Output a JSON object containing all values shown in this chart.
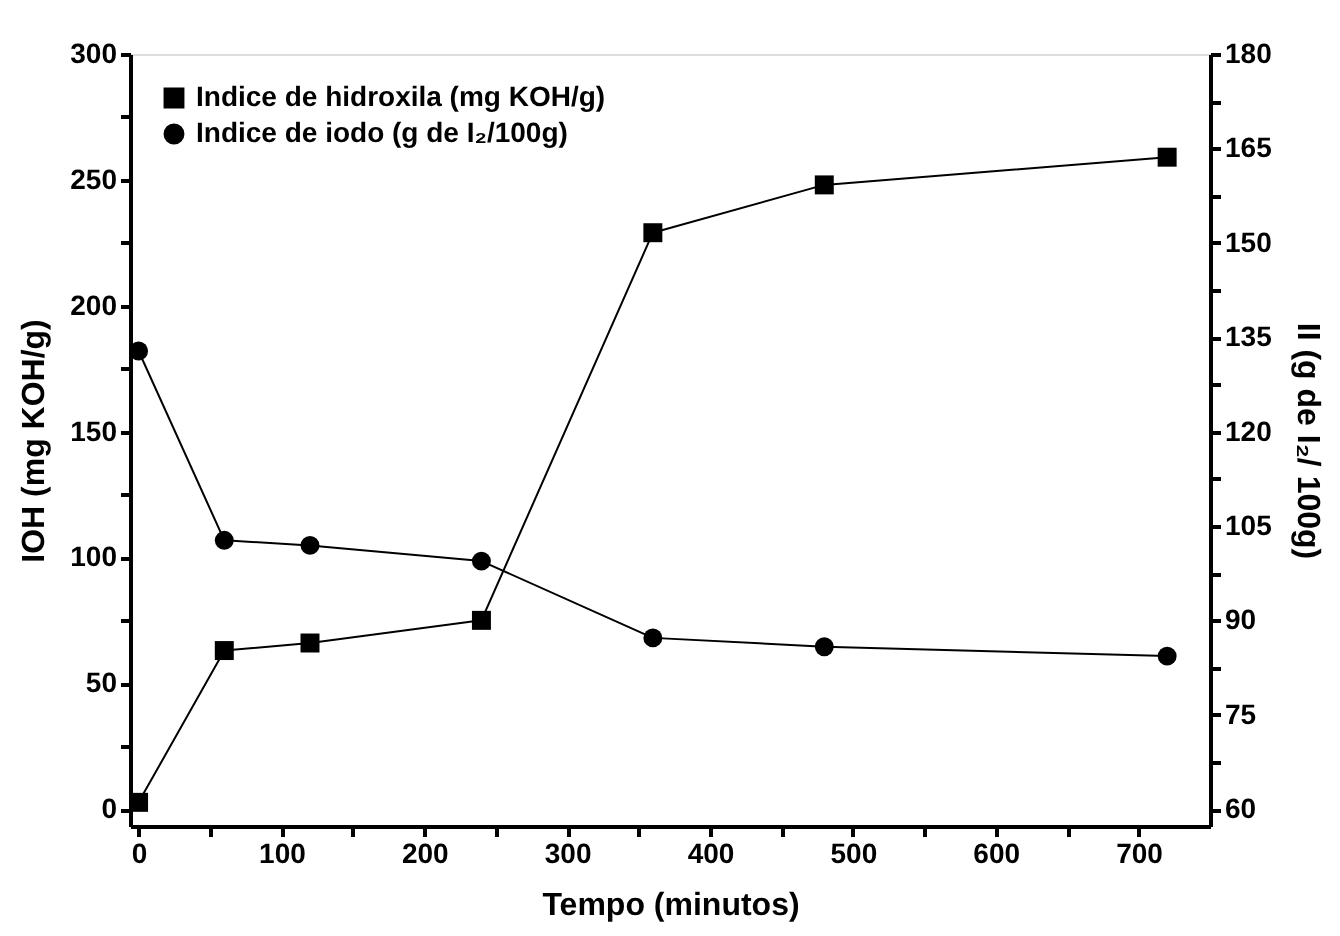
{
  "chart_data": {
    "type": "line",
    "xlabel": "Tempo (minutos)",
    "ylabel": "IOH (mg KOH/g)",
    "y2label": "II (g de I₂/ 100g)",
    "x": [
      0,
      60,
      120,
      240,
      360,
      480,
      720
    ],
    "series": [
      {
        "name": "Indice de hidroxila (mg KOH/g)",
        "color": "#000000",
        "marker": "square",
        "values": [
          2.7,
          63,
          66,
          75,
          229,
          248,
          259
        ]
      },
      {
        "name": "Indice de iodo (g de I₂/100g)",
        "color": "#000000",
        "marker": "circle",
        "axis": "y2",
        "values": [
          132.8,
          102.7,
          101.9,
          99.4,
          87.2,
          85.8,
          84.3
        ]
      }
    ],
    "xlim": [
      -6,
      750
    ],
    "ylim": [
      -6.7,
      300
    ],
    "y2lim": [
      57.3,
      180
    ],
    "xticks": [
      0,
      {
        "value": 50,
        "label": null
      },
      100,
      {
        "value": 150,
        "label": null
      },
      200,
      {
        "value": 250,
        "label": null
      },
      300,
      {
        "value": 350,
        "label": null
      },
      400,
      {
        "value": 450,
        "label": null
      },
      500,
      {
        "value": 550,
        "label": null
      },
      600,
      {
        "value": 650,
        "label": null
      },
      700
    ],
    "yticks": [
      0,
      {
        "value": 25,
        "label": null
      },
      50,
      {
        "value": 75,
        "label": null
      },
      100,
      {
        "value": 125,
        "label": null
      },
      150,
      {
        "value": 175,
        "label": null
      },
      200,
      {
        "value": 225,
        "label": null
      },
      250,
      {
        "value": 275,
        "label": null
      },
      300
    ],
    "y2ticks": [
      60,
      {
        "value": 67.5,
        "label": null
      },
      75,
      {
        "value": 82.5,
        "label": null
      },
      90,
      {
        "value": 97.5,
        "label": null
      },
      105,
      {
        "value": 112.5,
        "label": null
      },
      120,
      {
        "value": 127.5,
        "label": null
      },
      135,
      {
        "value": 142.5,
        "label": null
      },
      150,
      {
        "value": 157.5,
        "label": null
      },
      165,
      {
        "value": 172.5,
        "label": null
      },
      180
    ],
    "grid": false,
    "legend": "top left",
    "line_style": "solid"
  }
}
